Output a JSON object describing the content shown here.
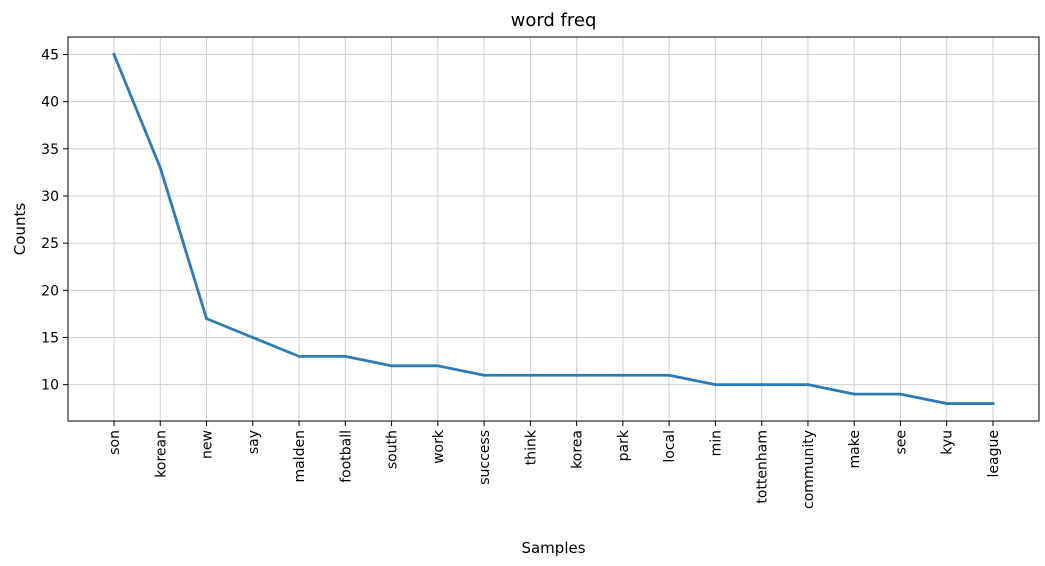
{
  "chart_data": {
    "type": "line",
    "title": "word freq",
    "xlabel": "Samples",
    "ylabel": "Counts",
    "categories": [
      "son",
      "korean",
      "new",
      "say",
      "malden",
      "football",
      "south",
      "work",
      "success",
      "think",
      "korea",
      "park",
      "local",
      "min",
      "tottenham",
      "community",
      "make",
      "see",
      "kyu",
      "league"
    ],
    "series": [
      {
        "values": [
          45,
          33,
          17,
          15,
          13,
          13,
          12,
          12,
          11,
          11,
          11,
          11,
          11,
          10,
          10,
          10,
          9,
          9,
          8,
          8
        ]
      }
    ],
    "yticks": [
      10,
      15,
      20,
      25,
      30,
      35,
      40,
      45
    ],
    "ylim": [
      6.15,
      46.85
    ],
    "grid": true,
    "line_color": "#2c7bb6"
  }
}
